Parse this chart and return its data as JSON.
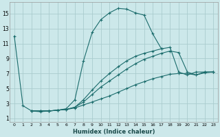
{
  "xlabel": "Humidex (Indice chaleur)",
  "ylabel": "",
  "bg_color": "#cce8ea",
  "grid_color": "#aaccce",
  "line_color": "#1a6b6b",
  "xlim": [
    -0.5,
    23.5
  ],
  "ylim": [
    0.5,
    16.5
  ],
  "xticks": [
    0,
    1,
    2,
    3,
    4,
    5,
    6,
    7,
    8,
    9,
    10,
    11,
    12,
    13,
    14,
    15,
    16,
    17,
    18,
    19,
    20,
    21,
    22,
    23
  ],
  "yticks": [
    1,
    3,
    5,
    7,
    9,
    11,
    13,
    15
  ],
  "series": [
    {
      "x": [
        0,
        1,
        2,
        3,
        4,
        5,
        6,
        7,
        8,
        9,
        10,
        11,
        12,
        13,
        14,
        15,
        16,
        17
      ],
      "y": [
        12,
        2.7,
        2.0,
        1.9,
        2.0,
        2.1,
        2.3,
        3.5,
        8.7,
        12.5,
        14.2,
        15.1,
        15.7,
        15.6,
        15.1,
        14.8,
        12.3,
        10.3
      ]
    },
    {
      "x": [
        2,
        3,
        4,
        5,
        6,
        7,
        8,
        9,
        10,
        11,
        12,
        13,
        14,
        15,
        16,
        17,
        18,
        19,
        20,
        21,
        22,
        23
      ],
      "y": [
        2.0,
        2.0,
        2.0,
        2.1,
        2.2,
        2.5,
        3.2,
        4.2,
        5.2,
        6.0,
        6.8,
        7.6,
        8.3,
        8.9,
        9.3,
        9.7,
        10.0,
        9.8,
        7.2,
        6.8,
        7.2,
        7.2
      ]
    },
    {
      "x": [
        2,
        3,
        4,
        5,
        6,
        7,
        8,
        9,
        10,
        11,
        12,
        13,
        14,
        15,
        16,
        17,
        18,
        19,
        20,
        21,
        22,
        23
      ],
      "y": [
        2.0,
        2.0,
        2.0,
        2.1,
        2.2,
        2.5,
        3.5,
        4.8,
        6.0,
        7.0,
        7.9,
        8.7,
        9.3,
        9.7,
        10.0,
        10.3,
        10.5,
        7.2,
        6.8,
        7.2,
        7.2,
        7.2
      ]
    },
    {
      "x": [
        2,
        3,
        4,
        5,
        6,
        7,
        8,
        9,
        10,
        11,
        12,
        13,
        14,
        15,
        16,
        17,
        18,
        19,
        20,
        21,
        22,
        23
      ],
      "y": [
        2.0,
        2.0,
        2.0,
        2.1,
        2.2,
        2.4,
        2.8,
        3.2,
        3.6,
        4.0,
        4.5,
        5.0,
        5.5,
        5.9,
        6.3,
        6.6,
        6.9,
        7.0,
        7.0,
        6.8,
        7.1,
        7.2
      ]
    }
  ]
}
